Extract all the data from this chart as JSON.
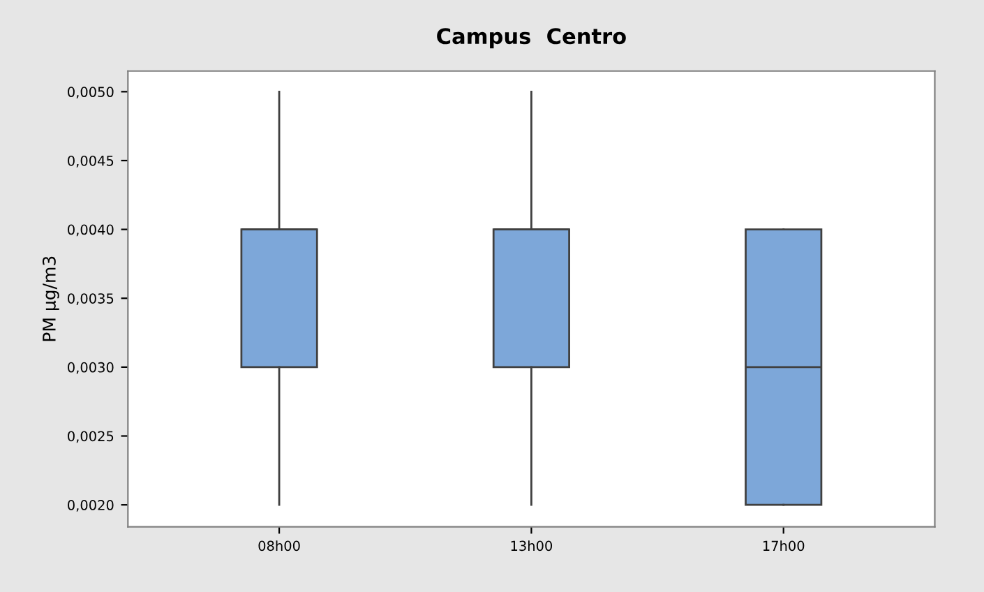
{
  "chart_data": {
    "type": "box",
    "title": "Campus  Centro",
    "ylabel": "PM µg/m3",
    "categories": [
      "08h00",
      "13h00",
      "17h00"
    ],
    "boxes": [
      {
        "low": 0.002,
        "q1": 0.003,
        "median": 0.004,
        "q3": 0.004,
        "high": 0.005
      },
      {
        "low": 0.002,
        "q1": 0.003,
        "median": 0.004,
        "q3": 0.004,
        "high": 0.005
      },
      {
        "low": 0.002,
        "q1": 0.002,
        "median": 0.003,
        "q3": 0.004,
        "high": 0.004
      }
    ],
    "color": "#7da7d9",
    "ylim": [
      0.00184,
      0.00515
    ],
    "yticks": [
      {
        "value": 0.002,
        "label": "0,0020"
      },
      {
        "value": 0.0025,
        "label": "0,0025"
      },
      {
        "value": 0.003,
        "label": "0,0030"
      },
      {
        "value": 0.0035,
        "label": "0,0035"
      },
      {
        "value": 0.004,
        "label": "0,0040"
      },
      {
        "value": 0.0045,
        "label": "0,0045"
      },
      {
        "value": 0.005,
        "label": "0,0050"
      }
    ],
    "grid": false,
    "legend": false
  }
}
